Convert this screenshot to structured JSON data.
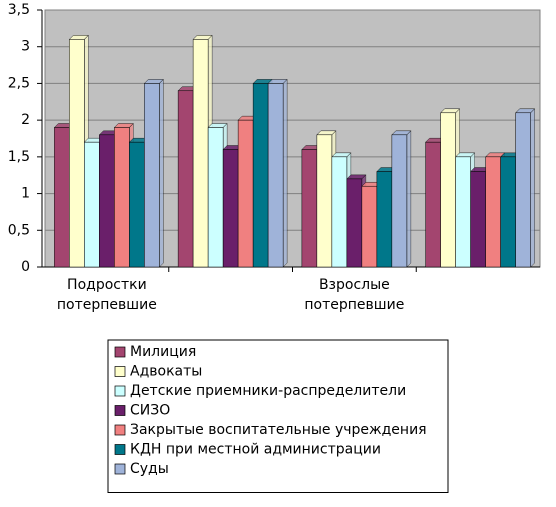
{
  "chart_data": {
    "type": "bar",
    "categories": [
      "Подростки\nпотерпевшие",
      null,
      "Взрослые\nпотерпевшие",
      null
    ],
    "series": [
      {
        "name": "Милиция",
        "color": "#a3456f",
        "values": [
          1.9,
          2.4,
          1.6,
          1.7
        ]
      },
      {
        "name": "Адвокаты",
        "color": "#ffffcc",
        "values": [
          3.1,
          3.1,
          1.8,
          2.1
        ]
      },
      {
        "name": "Детские приемники-распределители",
        "color": "#ccffff",
        "values": [
          1.7,
          1.9,
          1.5,
          1.5
        ]
      },
      {
        "name": "СИЗО",
        "color": "#6a1f6a",
        "values": [
          1.8,
          1.6,
          1.2,
          1.3
        ]
      },
      {
        "name": "Закрытые воспитательные учреждения",
        "color": "#f08080",
        "values": [
          1.9,
          2.0,
          1.1,
          1.5
        ]
      },
      {
        "name": "КДН при местной администрации",
        "color": "#00778a",
        "values": [
          1.7,
          2.5,
          1.3,
          1.5
        ]
      },
      {
        "name": "Суды",
        "color": "#9fb3d9",
        "values": [
          2.5,
          2.5,
          1.8,
          2.1
        ]
      }
    ],
    "ylim": [
      0,
      3.5
    ],
    "yticks": [
      0,
      {
        "value": 0.5,
        "label": "0,5"
      },
      1,
      {
        "value": 1.5,
        "label": "1,5"
      },
      2,
      {
        "value": 2.5,
        "label": "2,5"
      },
      3,
      {
        "value": 3.5,
        "label": "3,5"
      }
    ],
    "grid": true,
    "legend": "bottom"
  }
}
